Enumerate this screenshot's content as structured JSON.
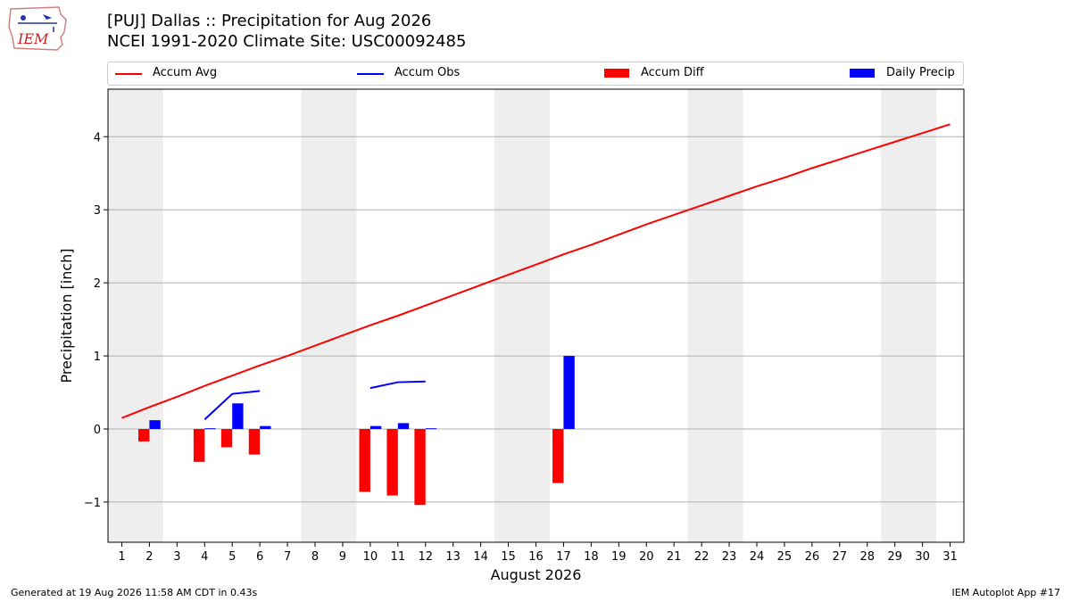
{
  "header": {
    "title_line1": "[PUJ] Dallas :: Precipitation for Aug 2026",
    "title_line2": "NCEI 1991-2020 Climate Site: USC00092485",
    "logo_text": "IEM"
  },
  "legend": {
    "items": [
      {
        "label": "Accum Avg",
        "kind": "line",
        "color": "#ff0000"
      },
      {
        "label": "Accum Obs",
        "kind": "line",
        "color": "#0000ff"
      },
      {
        "label": "Accum Diff",
        "kind": "box",
        "color": "#ff0000"
      },
      {
        "label": "Daily Precip",
        "kind": "box",
        "color": "#0000ff"
      }
    ]
  },
  "footer": {
    "left": "Generated at 19 Aug 2026 11:58 AM CDT in 0.43s",
    "right": "IEM Autoplot App #17"
  },
  "colors": {
    "avg": "#ff0000",
    "obs": "#0000ff",
    "diff": "#ff0000",
    "daily": "#0000ff",
    "weekend": "#eeeeee",
    "grid": "#b0b0b0"
  },
  "chart_data": {
    "type": "bar",
    "title": "[PUJ] Dallas :: Precipitation for Aug 2026",
    "subtitle": "NCEI 1991-2020 Climate Site: USC00092485",
    "xlabel": "August 2026",
    "ylabel": "Precipitation [inch]",
    "xlim": [
      0.5,
      31.5
    ],
    "ylim": [
      -1.55,
      4.65
    ],
    "yticks": [
      -1,
      0,
      1,
      2,
      3,
      4
    ],
    "ytick_labels": [
      "−1",
      "0",
      "1",
      "2",
      "3",
      "4"
    ],
    "xticks": [
      1,
      2,
      3,
      4,
      5,
      6,
      7,
      8,
      9,
      10,
      11,
      12,
      13,
      14,
      15,
      16,
      17,
      18,
      19,
      20,
      21,
      22,
      23,
      24,
      25,
      26,
      27,
      28,
      29,
      30,
      31
    ],
    "grid": "y",
    "legend_position": "top",
    "shaded_days": [
      [
        1,
        2
      ],
      [
        8,
        9
      ],
      [
        15,
        16
      ],
      [
        22,
        23
      ],
      [
        29,
        30
      ]
    ],
    "series": [
      {
        "name": "Accum Avg",
        "type": "line",
        "x": [
          1,
          2,
          3,
          4,
          5,
          6,
          7,
          8,
          9,
          10,
          11,
          12,
          13,
          14,
          15,
          16,
          17,
          18,
          19,
          20,
          21,
          22,
          23,
          24,
          25,
          26,
          27,
          28,
          29,
          30,
          31
        ],
        "values": [
          0.15,
          0.3,
          0.44,
          0.59,
          0.73,
          0.87,
          1.0,
          1.14,
          1.28,
          1.42,
          1.55,
          1.69,
          1.83,
          1.97,
          2.11,
          2.25,
          2.39,
          2.52,
          2.66,
          2.8,
          2.93,
          3.06,
          3.19,
          3.32,
          3.44,
          3.57,
          3.69,
          3.81,
          3.93,
          4.05,
          4.17
        ]
      },
      {
        "name": "Accum Obs",
        "type": "line",
        "segments": [
          {
            "x": [
              4,
              5,
              6
            ],
            "values": [
              0.13,
              0.48,
              0.52
            ]
          },
          {
            "x": [
              10,
              11,
              12
            ],
            "values": [
              0.56,
              0.64,
              0.65
            ]
          }
        ]
      },
      {
        "name": "Accum Diff",
        "type": "bar",
        "x": [
          2,
          4,
          5,
          6,
          10,
          11,
          12,
          17
        ],
        "values": [
          -0.17,
          -0.45,
          -0.25,
          -0.35,
          -0.86,
          -0.91,
          -1.04,
          -0.74
        ]
      },
      {
        "name": "Daily Precip",
        "type": "bar",
        "x": [
          2,
          4,
          5,
          6,
          10,
          11,
          12,
          17
        ],
        "values": [
          0.12,
          0.01,
          0.35,
          0.04,
          0.04,
          0.08,
          0.01,
          1.0
        ]
      }
    ]
  }
}
